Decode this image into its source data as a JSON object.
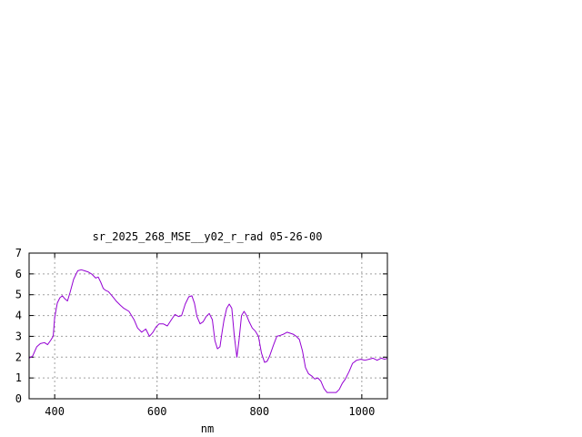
{
  "chart_data": {
    "type": "line",
    "title": "sr_2025_268_MSE__y02_r_rad 05-26-00",
    "xlabel": "nm",
    "ylabel": "",
    "xlim": [
      350,
      1050
    ],
    "ylim": [
      0,
      7
    ],
    "xticks": [
      400,
      600,
      800,
      1000
    ],
    "yticks": [
      0,
      1,
      2,
      3,
      4,
      5,
      6,
      7
    ],
    "grid": true,
    "line_color": "#9400d3",
    "series": [
      {
        "x": [
          350,
          357,
          365,
          372,
          380,
          386,
          392,
          397,
          400,
          405,
          410,
          415,
          420,
          425,
          430,
          437,
          445,
          452,
          458,
          465,
          472,
          480,
          485,
          490,
          495,
          500,
          505,
          510,
          515,
          520,
          528,
          535,
          545,
          555,
          562,
          570,
          578,
          585,
          592,
          598,
          604,
          612,
          620,
          628,
          635,
          642,
          648,
          655,
          662,
          668,
          673,
          678,
          684,
          690,
          696,
          702,
          708,
          713,
          718,
          723,
          727,
          731,
          736,
          741,
          746,
          751,
          756,
          760,
          765,
          770,
          775,
          780,
          786,
          792,
          798,
          804,
          810,
          815,
          820,
          827,
          834,
          841,
          847,
          854,
          860,
          866,
          872,
          878,
          884,
          890,
          896,
          902,
          908,
          914,
          920,
          926,
          932,
          938,
          944,
          950,
          956,
          962,
          968,
          975,
          982,
          990,
          998,
          1006,
          1014,
          1022,
          1030,
          1038,
          1045,
          1050
        ],
        "y": [
          1.95,
          2.05,
          2.5,
          2.65,
          2.7,
          2.6,
          2.8,
          3.0,
          3.9,
          4.6,
          4.85,
          4.95,
          4.8,
          4.7,
          5.1,
          5.75,
          6.15,
          6.2,
          6.15,
          6.1,
          6.0,
          5.8,
          5.85,
          5.6,
          5.3,
          5.2,
          5.15,
          5.0,
          4.85,
          4.7,
          4.5,
          4.35,
          4.2,
          3.8,
          3.4,
          3.2,
          3.35,
          3.0,
          3.2,
          3.45,
          3.6,
          3.6,
          3.5,
          3.8,
          4.05,
          3.95,
          4.0,
          4.55,
          4.9,
          4.95,
          4.6,
          3.95,
          3.6,
          3.7,
          3.95,
          4.1,
          3.8,
          2.8,
          2.4,
          2.5,
          3.2,
          3.8,
          4.35,
          4.55,
          4.35,
          3.0,
          2.0,
          2.8,
          4.0,
          4.2,
          4.0,
          3.7,
          3.4,
          3.25,
          3.0,
          2.2,
          1.75,
          1.8,
          2.05,
          2.55,
          3.0,
          3.05,
          3.1,
          3.2,
          3.15,
          3.1,
          3.0,
          2.85,
          2.3,
          1.5,
          1.2,
          1.1,
          0.95,
          1.0,
          0.85,
          0.5,
          0.3,
          0.3,
          0.3,
          0.3,
          0.45,
          0.75,
          0.95,
          1.3,
          1.7,
          1.85,
          1.9,
          1.85,
          1.9,
          1.95,
          1.85,
          1.95,
          1.9,
          1.95
        ]
      }
    ]
  }
}
